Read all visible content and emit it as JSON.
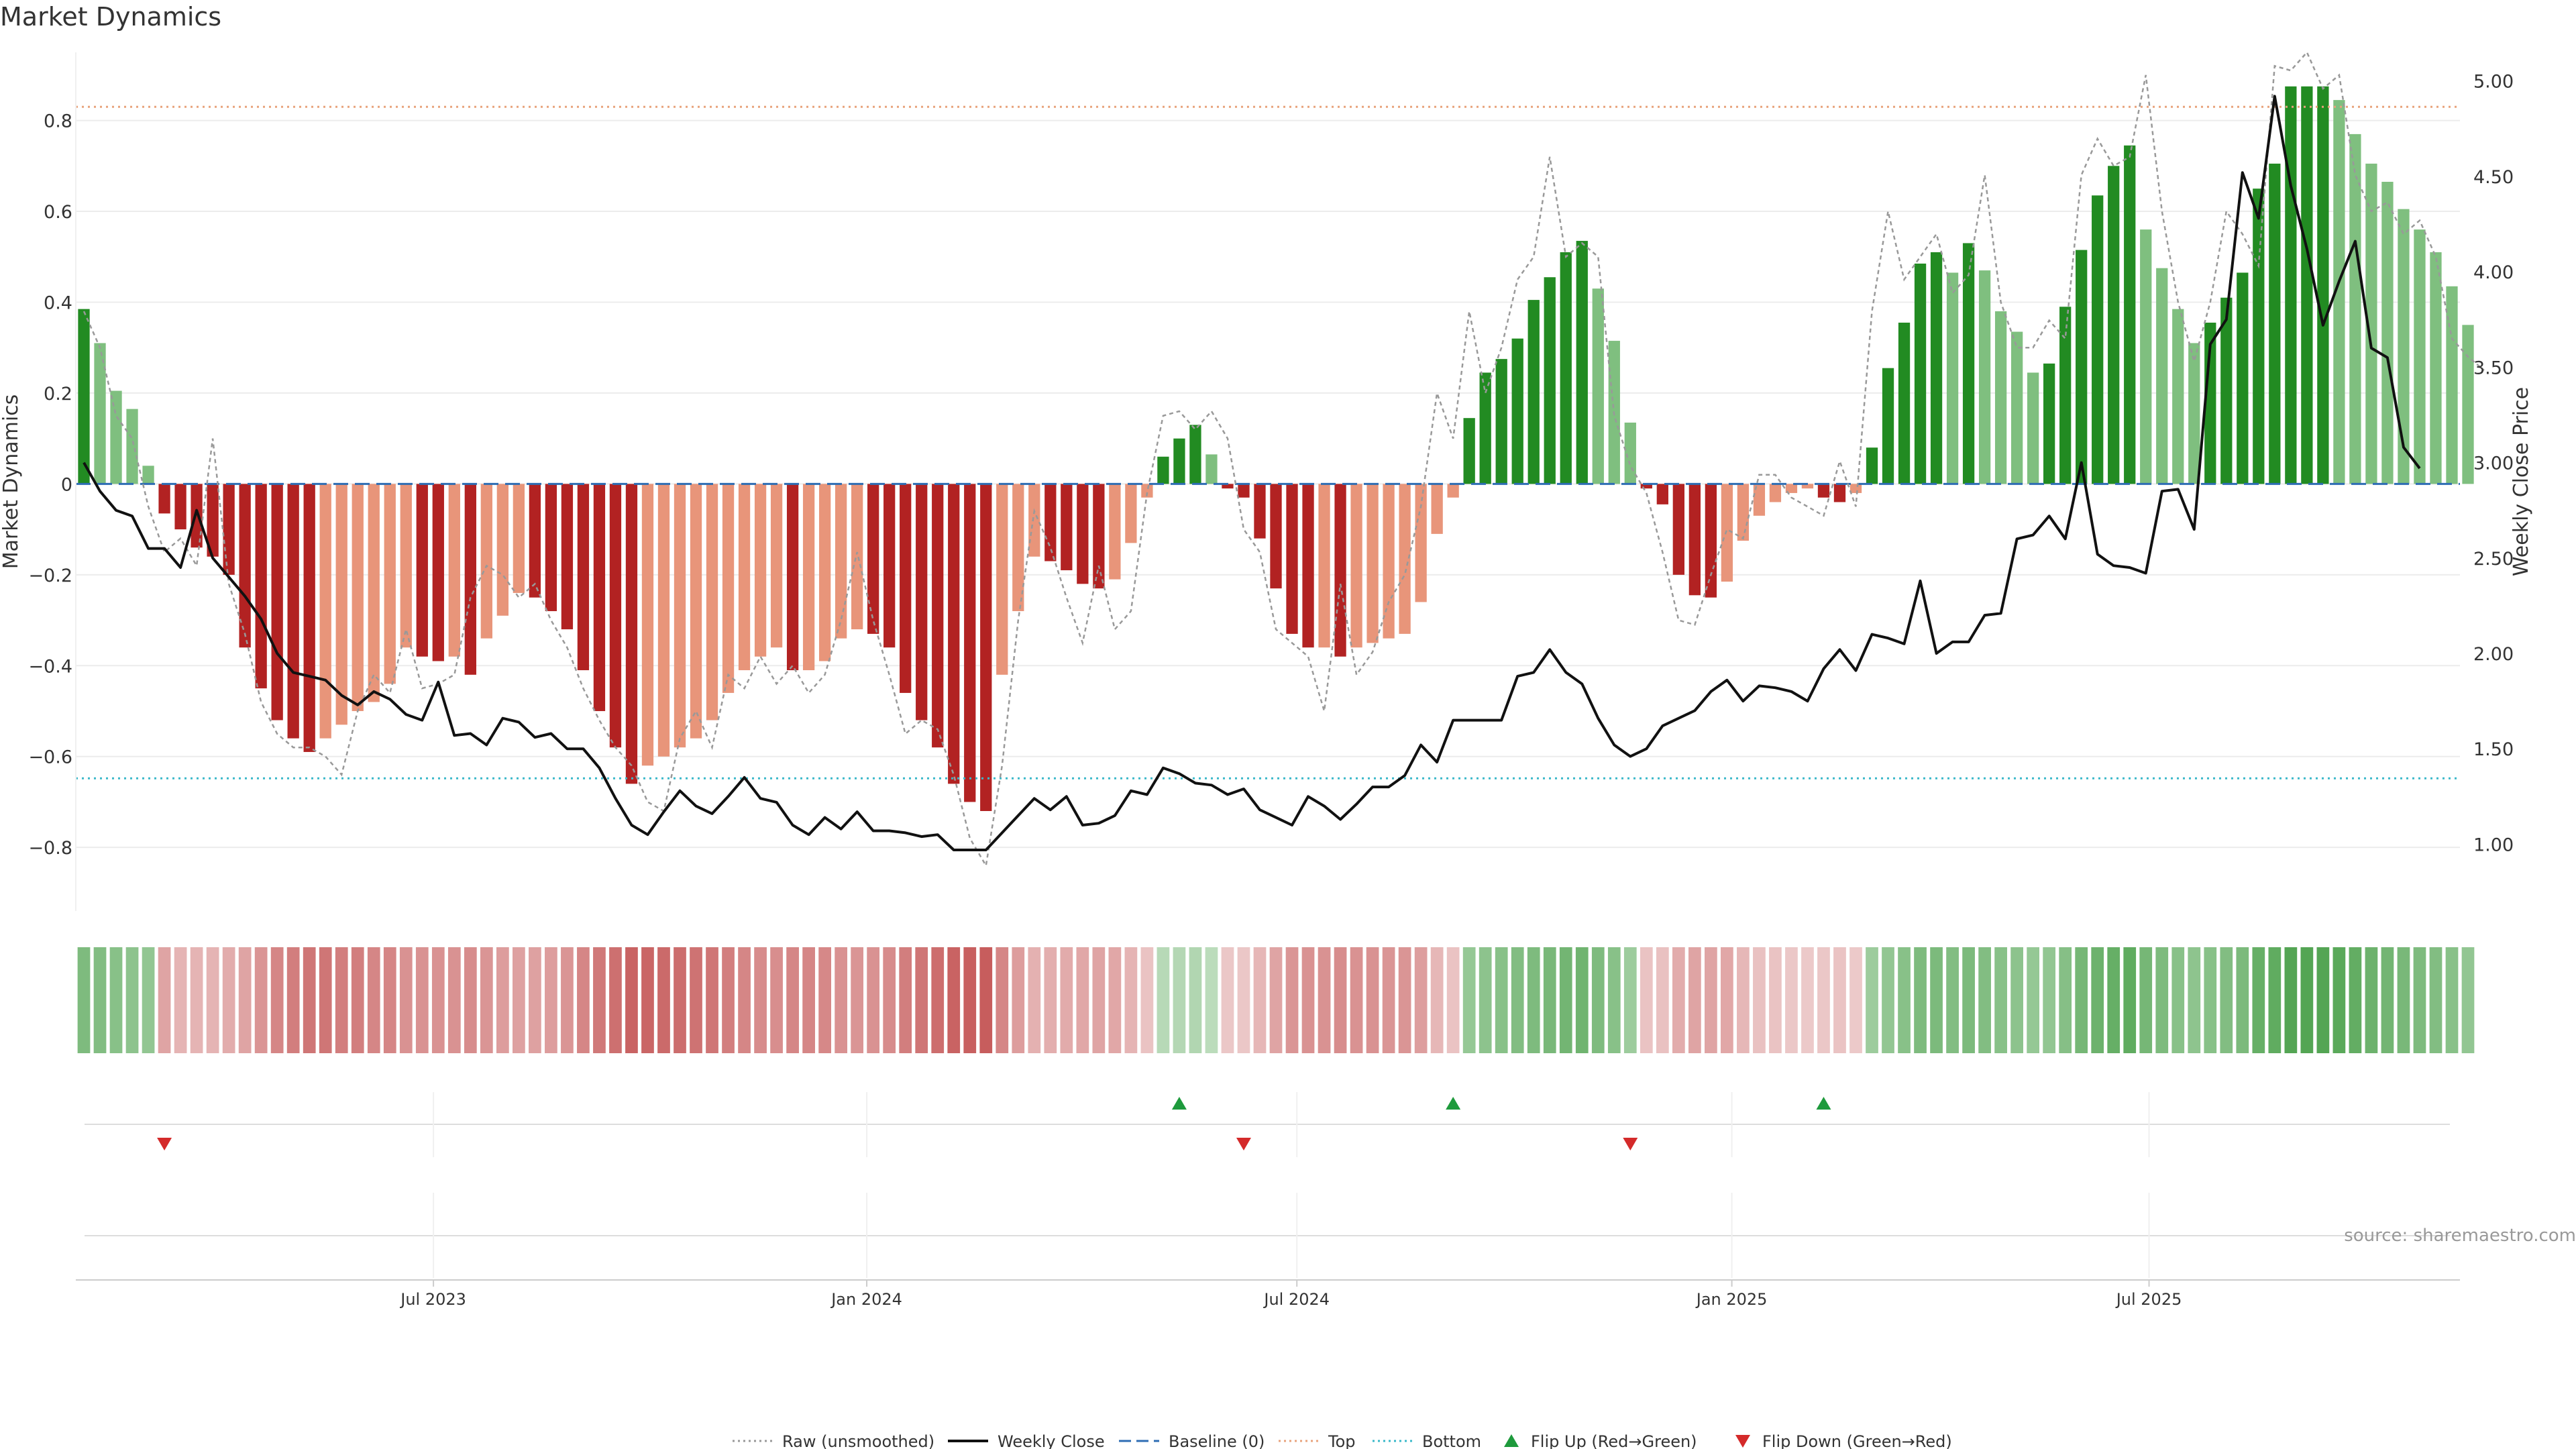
{
  "chart_data": {
    "type": "bar",
    "title": "Market Dynamics",
    "ylabel": "Market Dynamics",
    "y2label": "Weekly Close Price",
    "ylim": [
      -0.94,
      0.95
    ],
    "y2lim": [
      0.65,
      5.15
    ],
    "yticks": [
      -0.8,
      -0.6,
      -0.4,
      -0.2,
      0,
      0.2,
      0.4,
      0.6,
      0.8
    ],
    "ytick_labels": [
      "−0.8",
      "−0.6",
      "−0.4",
      "−0.2",
      "0",
      "0.2",
      "0.4",
      "0.6",
      "0.8"
    ],
    "y2ticks": [
      1.0,
      1.5,
      2.0,
      2.5,
      3.0,
      3.5,
      4.0,
      4.5,
      5.0
    ],
    "y2tick_labels": [
      "1.00",
      "1.50",
      "2.00",
      "2.50",
      "3.00",
      "3.50",
      "4.00",
      "4.50",
      "5.00"
    ],
    "top_level": 0.83,
    "bottom_level": -0.648,
    "weeks": 148,
    "xticks": [
      {
        "label": "Jul 2023",
        "week": 21.7
      },
      {
        "label": "Jan 2024",
        "week": 48.6
      },
      {
        "label": "Jul 2024",
        "week": 75.3
      },
      {
        "label": "Jan 2025",
        "week": 102.3
      },
      {
        "label": "Jul 2025",
        "week": 128.2
      }
    ],
    "dynamics": [
      0.385,
      0.31,
      0.205,
      0.165,
      0.04,
      -0.065,
      -0.1,
      -0.14,
      -0.16,
      -0.2,
      -0.36,
      -0.45,
      -0.52,
      -0.56,
      -0.59,
      -0.56,
      -0.53,
      -0.5,
      -0.48,
      -0.44,
      -0.36,
      -0.38,
      -0.39,
      -0.38,
      -0.42,
      -0.34,
      -0.29,
      -0.24,
      -0.25,
      -0.28,
      -0.32,
      -0.41,
      -0.5,
      -0.58,
      -0.66,
      -0.62,
      -0.6,
      -0.58,
      -0.56,
      -0.52,
      -0.46,
      -0.41,
      -0.38,
      -0.36,
      -0.41,
      -0.41,
      -0.39,
      -0.34,
      -0.32,
      -0.33,
      -0.36,
      -0.46,
      -0.52,
      -0.58,
      -0.66,
      -0.7,
      -0.72,
      -0.42,
      -0.28,
      -0.16,
      -0.17,
      -0.19,
      -0.22,
      -0.23,
      -0.21,
      -0.13,
      -0.03,
      0.06,
      0.1,
      0.13,
      0.065,
      -0.01,
      -0.03,
      -0.12,
      -0.23,
      -0.33,
      -0.36,
      -0.36,
      -0.38,
      -0.36,
      -0.35,
      -0.34,
      -0.33,
      -0.26,
      -0.11,
      -0.03,
      0.145,
      0.245,
      0.275,
      0.32,
      0.405,
      0.455,
      0.51,
      0.535,
      0.43,
      0.315,
      0.135,
      -0.01,
      -0.045,
      -0.2,
      -0.245,
      -0.25,
      -0.215,
      -0.125,
      -0.07,
      -0.04,
      -0.02,
      -0.01,
      -0.03,
      -0.04,
      -0.02,
      0.08,
      0.255,
      0.355,
      0.485,
      0.51,
      0.465,
      0.53,
      0.47,
      0.38,
      0.335,
      0.245,
      0.265,
      0.39,
      0.515,
      0.635,
      0.7,
      0.745,
      0.56,
      0.475,
      0.385,
      0.31,
      0.355,
      0.41,
      0.465,
      0.65,
      0.705,
      0.875,
      0.875,
      0.875,
      0.845,
      0.77,
      0.705,
      0.665,
      0.605,
      0.56,
      0.51,
      0.435,
      0.35
    ],
    "raw": [
      0.38,
      0.3,
      0.15,
      0.1,
      -0.05,
      -0.15,
      -0.12,
      -0.18,
      0.1,
      -0.22,
      -0.33,
      -0.48,
      -0.55,
      -0.58,
      -0.58,
      -0.6,
      -0.64,
      -0.5,
      -0.42,
      -0.46,
      -0.32,
      -0.45,
      -0.44,
      -0.42,
      -0.25,
      -0.18,
      -0.2,
      -0.25,
      -0.22,
      -0.3,
      -0.36,
      -0.45,
      -0.52,
      -0.58,
      -0.62,
      -0.7,
      -0.72,
      -0.56,
      -0.5,
      -0.58,
      -0.42,
      -0.45,
      -0.38,
      -0.44,
      -0.4,
      -0.46,
      -0.42,
      -0.3,
      -0.15,
      -0.3,
      -0.42,
      -0.55,
      -0.52,
      -0.54,
      -0.64,
      -0.78,
      -0.84,
      -0.62,
      -0.3,
      -0.06,
      -0.14,
      -0.25,
      -0.35,
      -0.18,
      -0.32,
      -0.28,
      -0.02,
      0.15,
      0.16,
      0.12,
      0.16,
      0.1,
      -0.1,
      -0.15,
      -0.32,
      -0.35,
      -0.38,
      -0.5,
      -0.22,
      -0.42,
      -0.37,
      -0.26,
      -0.2,
      -0.05,
      0.2,
      0.1,
      0.38,
      0.2,
      0.3,
      0.45,
      0.5,
      0.72,
      0.5,
      0.53,
      0.5,
      0.15,
      0.04,
      -0.02,
      -0.15,
      -0.3,
      -0.31,
      -0.2,
      -0.1,
      -0.12,
      0.02,
      0.02,
      -0.03,
      -0.05,
      -0.07,
      0.05,
      -0.05,
      0.38,
      0.6,
      0.45,
      0.5,
      0.55,
      0.42,
      0.46,
      0.68,
      0.4,
      0.3,
      0.3,
      0.36,
      0.32,
      0.68,
      0.76,
      0.7,
      0.72,
      0.9,
      0.6,
      0.4,
      0.27,
      0.4,
      0.6,
      0.55,
      0.48,
      0.92,
      0.91,
      0.95,
      0.87,
      0.9,
      0.68,
      0.6,
      0.62,
      0.55,
      0.58,
      0.5,
      0.32,
      0.28,
      0.25
    ],
    "close": [
      3.0,
      2.85,
      2.75,
      2.72,
      2.55,
      2.55,
      2.45,
      2.75,
      2.5,
      2.4,
      2.3,
      2.18,
      2.0,
      1.9,
      1.88,
      1.86,
      1.78,
      1.73,
      1.8,
      1.76,
      1.68,
      1.65,
      1.85,
      1.57,
      1.58,
      1.52,
      1.66,
      1.64,
      1.56,
      1.58,
      1.5,
      1.5,
      1.4,
      1.24,
      1.1,
      1.05,
      1.17,
      1.28,
      1.2,
      1.16,
      1.25,
      1.35,
      1.24,
      1.22,
      1.1,
      1.05,
      1.14,
      1.08,
      1.17,
      1.07,
      1.07,
      1.06,
      1.04,
      1.05,
      0.97,
      0.97,
      0.97,
      1.06,
      1.15,
      1.24,
      1.18,
      1.25,
      1.1,
      1.11,
      1.15,
      1.28,
      1.26,
      1.4,
      1.37,
      1.32,
      1.31,
      1.26,
      1.29,
      1.18,
      1.14,
      1.1,
      1.25,
      1.2,
      1.13,
      1.21,
      1.3,
      1.3,
      1.36,
      1.52,
      1.43,
      1.65,
      1.65,
      1.65,
      1.65,
      1.88,
      1.9,
      2.02,
      1.9,
      1.84,
      1.66,
      1.52,
      1.46,
      1.5,
      1.62,
      1.66,
      1.7,
      1.8,
      1.86,
      1.75,
      1.83,
      1.82,
      1.8,
      1.75,
      1.92,
      2.02,
      1.91,
      2.1,
      2.08,
      2.05,
      2.38,
      2.0,
      2.06,
      2.06,
      2.2,
      2.21,
      2.6,
      2.62,
      2.72,
      2.6,
      3.0,
      2.52,
      2.46,
      2.45,
      2.42,
      2.85,
      2.86,
      2.65,
      3.62,
      3.75,
      4.52,
      4.28,
      4.92,
      4.45,
      4.12,
      3.72,
      3.95,
      4.16,
      3.6,
      3.55,
      3.08,
      2.97
    ],
    "trend_strength": [
      0.55,
      0.52,
      0.48,
      0.45,
      0.42,
      0.3,
      0.2,
      0.2,
      0.2,
      0.25,
      0.3,
      0.4,
      0.5,
      0.55,
      0.6,
      0.6,
      0.55,
      0.55,
      0.5,
      0.5,
      0.42,
      0.42,
      0.42,
      0.42,
      0.45,
      0.4,
      0.35,
      0.32,
      0.32,
      0.35,
      0.4,
      0.5,
      0.58,
      0.64,
      0.72,
      0.7,
      0.68,
      0.66,
      0.62,
      0.6,
      0.55,
      0.5,
      0.46,
      0.44,
      0.5,
      0.5,
      0.48,
      0.42,
      0.4,
      0.42,
      0.46,
      0.55,
      0.6,
      0.65,
      0.72,
      0.74,
      0.76,
      0.5,
      0.35,
      0.22,
      0.24,
      0.26,
      0.28,
      0.3,
      0.28,
      0.2,
      0.1,
      0.18,
      0.2,
      0.22,
      0.15,
      0.08,
      0.08,
      0.18,
      0.3,
      0.4,
      0.42,
      0.42,
      0.45,
      0.42,
      0.42,
      0.4,
      0.4,
      0.34,
      0.18,
      0.1,
      0.4,
      0.45,
      0.48,
      0.52,
      0.55,
      0.58,
      0.62,
      0.64,
      0.55,
      0.48,
      0.35,
      0.1,
      0.12,
      0.25,
      0.3,
      0.3,
      0.28,
      0.18,
      0.12,
      0.1,
      0.08,
      0.06,
      0.08,
      0.1,
      0.06,
      0.35,
      0.42,
      0.48,
      0.55,
      0.56,
      0.52,
      0.56,
      0.52,
      0.48,
      0.45,
      0.4,
      0.42,
      0.5,
      0.6,
      0.66,
      0.7,
      0.74,
      0.6,
      0.55,
      0.48,
      0.44,
      0.48,
      0.52,
      0.56,
      0.7,
      0.74,
      0.82,
      0.82,
      0.82,
      0.78,
      0.72,
      0.66,
      0.62,
      0.58,
      0.55,
      0.52,
      0.48,
      0.42
    ],
    "flips_up_weeks": [
      68,
      85,
      108
    ],
    "flips_down_weeks": [
      5,
      72,
      96
    ],
    "legend": [
      {
        "label": "Raw (unsmoothed)",
        "style": "dotted",
        "color": "#999999"
      },
      {
        "label": "Weekly Close",
        "style": "solid",
        "color": "#111111"
      },
      {
        "label": "Baseline (0)",
        "style": "dashed",
        "color": "#2e6db4"
      },
      {
        "label": "Top",
        "style": "dotted",
        "color": "#e8a37c"
      },
      {
        "label": "Bottom",
        "style": "dotted",
        "color": "#3ab8c9"
      },
      {
        "label": "Flip Up (Red→Green)",
        "style": "triangle-up",
        "color": "#1e9a3c"
      },
      {
        "label": "Flip Down (Green→Red)",
        "style": "triangle-down",
        "color": "#d42a2a"
      }
    ],
    "colors": {
      "strong_green": "#228b22",
      "light_green": "#7fbf7f",
      "strong_red": "#b22222",
      "light_red": "#e8957a",
      "baseline": "#2e6db4",
      "top": "#e8a37c",
      "bottom": "#3ab8c9",
      "raw": "#999999",
      "close": "#111111",
      "flip_up": "#1e9a3c",
      "flip_down": "#d42a2a"
    },
    "source": "source: sharemaestro.com"
  }
}
